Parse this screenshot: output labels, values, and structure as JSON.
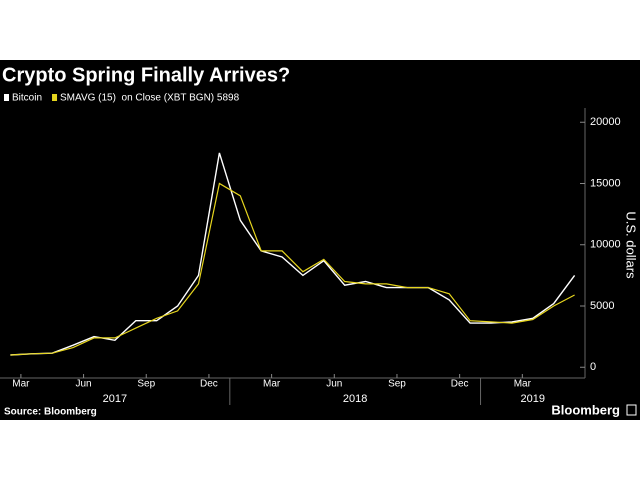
{
  "chart_data": {
    "type": "line",
    "title": "Crypto Spring Finally Arrives?",
    "x": [
      "2017-02",
      "2017-03",
      "2017-04",
      "2017-05",
      "2017-06",
      "2017-07",
      "2017-08",
      "2017-09",
      "2017-10",
      "2017-11",
      "2017-12",
      "2018-01",
      "2018-02",
      "2018-03",
      "2018-04",
      "2018-05",
      "2018-06",
      "2018-07",
      "2018-08",
      "2018-09",
      "2018-10",
      "2018-11",
      "2018-12",
      "2019-01",
      "2019-02",
      "2019-03",
      "2019-04",
      "2019-05"
    ],
    "series": [
      {
        "name": "Bitcoin",
        "color": "#ffffff",
        "values": [
          1000,
          1100,
          1150,
          1800,
          2500,
          2200,
          3800,
          3800,
          5000,
          7500,
          17500,
          12000,
          9500,
          9000,
          7500,
          8700,
          6700,
          7000,
          6500,
          6500,
          6500,
          5500,
          3600,
          3600,
          3700,
          4000,
          5200,
          7500
        ]
      },
      {
        "name": "SMAVG (15)  on Close (XBT BGN) 5898",
        "color": "#e6d51e",
        "values": [
          1000,
          1100,
          1150,
          1600,
          2400,
          2400,
          3200,
          4000,
          4600,
          6800,
          15000,
          14000,
          9500,
          9500,
          7800,
          8800,
          7000,
          6800,
          6800,
          6500,
          6500,
          6000,
          3800,
          3700,
          3600,
          3900,
          5000,
          5898
        ]
      }
    ],
    "ylabel": "U.S. dollars",
    "xlim": [
      "2017-02",
      "2019-06"
    ],
    "xticks": [
      {
        "value": "2017-03",
        "label": "Mar"
      },
      {
        "value": "2017-06",
        "label": "Jun"
      },
      {
        "value": "2017-09",
        "label": "Sep"
      },
      {
        "value": "2017-12",
        "label": "Dec"
      },
      {
        "value": "2018-03",
        "label": "Mar"
      },
      {
        "value": "2018-06",
        "label": "Jun"
      },
      {
        "value": "2018-09",
        "label": "Sep"
      },
      {
        "value": "2018-12",
        "label": "Dec"
      },
      {
        "value": "2019-03",
        "label": "Mar"
      }
    ],
    "years": [
      "2017",
      "2018",
      "2019"
    ],
    "ylim": [
      -1000,
      21000
    ],
    "yticks": [
      0,
      5000,
      10000,
      15000,
      20000
    ],
    "source": "Source: Bloomberg",
    "brand": "Bloomberg"
  }
}
